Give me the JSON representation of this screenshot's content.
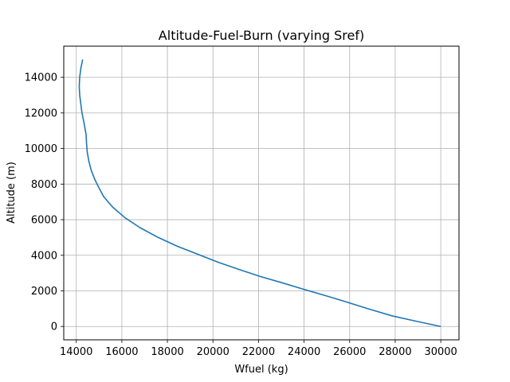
{
  "chart_data": {
    "type": "line",
    "title": "Altitude-Fuel-Burn (varying Sref)",
    "xlabel": "Wfuel (kg)",
    "ylabel": "Altitude (m)",
    "xlim": [
      13450,
      30800
    ],
    "ylim": [
      -750,
      15750
    ],
    "xticks": [
      14000,
      16000,
      18000,
      20000,
      22000,
      24000,
      26000,
      28000,
      30000
    ],
    "yticks": [
      0,
      2000,
      4000,
      6000,
      8000,
      10000,
      12000,
      14000
    ],
    "grid": true,
    "legend": "none",
    "series": [
      {
        "color": "#1f77b4",
        "points": [
          [
            30000,
            0
          ],
          [
            28900,
            300
          ],
          [
            27850,
            600
          ],
          [
            26800,
            1000
          ],
          [
            25800,
            1400
          ],
          [
            24900,
            1750
          ],
          [
            23950,
            2100
          ],
          [
            23050,
            2450
          ],
          [
            22100,
            2800
          ],
          [
            21150,
            3200
          ],
          [
            20250,
            3600
          ],
          [
            19350,
            4050
          ],
          [
            18450,
            4500
          ],
          [
            17600,
            5000
          ],
          [
            16800,
            5550
          ],
          [
            16150,
            6100
          ],
          [
            15600,
            6700
          ],
          [
            15200,
            7300
          ],
          [
            14950,
            7900
          ],
          [
            14800,
            8300
          ],
          [
            14650,
            8800
          ],
          [
            14550,
            9300
          ],
          [
            14480,
            9800
          ],
          [
            14450,
            10300
          ],
          [
            14430,
            10800
          ],
          [
            14400,
            11000
          ],
          [
            14330,
            11500
          ],
          [
            14250,
            12000
          ],
          [
            14200,
            12500
          ],
          [
            14150,
            13000
          ],
          [
            14130,
            13500
          ],
          [
            14150,
            14000
          ],
          [
            14200,
            14500
          ],
          [
            14280,
            15000
          ]
        ]
      }
    ],
    "colors": {
      "line": "#1f77b4",
      "grid": "#b0b0b0",
      "axes": "#000000"
    }
  }
}
